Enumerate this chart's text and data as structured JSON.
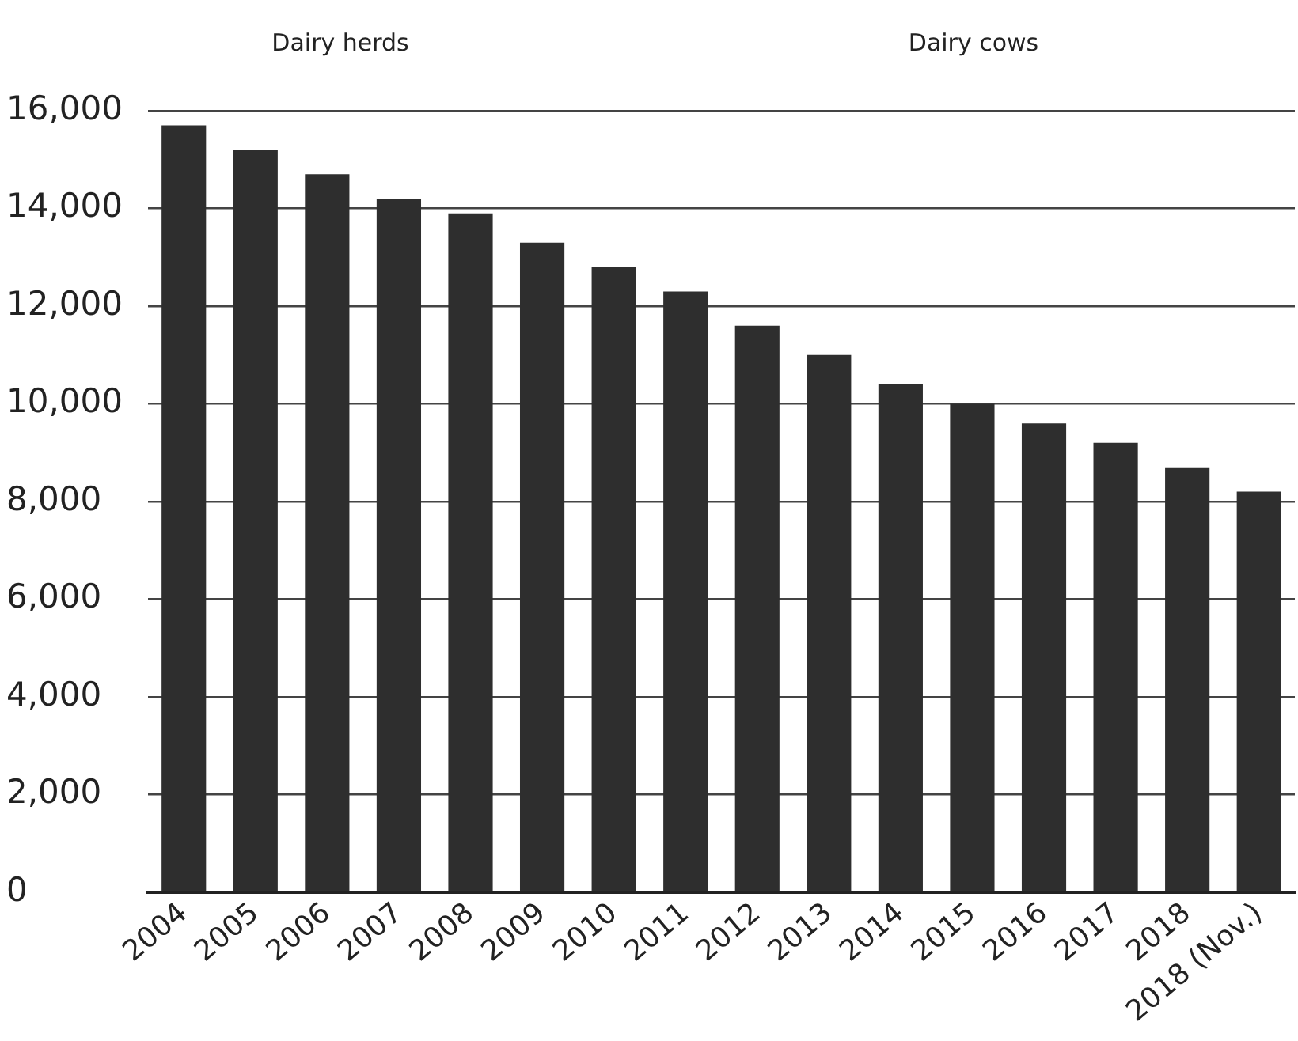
{
  "chart_data": {
    "type": "bar",
    "title": "Dairy herds",
    "annotations": [
      "Dairy cows"
    ],
    "categories": [
      "2004",
      "2005",
      "2006",
      "2007",
      "2008",
      "2009",
      "2010",
      "2011",
      "2012",
      "2013",
      "2014",
      "2015",
      "2016",
      "2017",
      "2018",
      "2018 (Nov.)"
    ],
    "values": [
      15700,
      15200,
      14700,
      14200,
      13900,
      13300,
      12800,
      12300,
      11600,
      11000,
      10400,
      10000,
      9600,
      9200,
      8700,
      8200
    ],
    "color": "#2e2e2e",
    "ylim": [
      0,
      16000
    ],
    "yticks": [
      0,
      {
        "value": 2000,
        "label": "2,000"
      },
      {
        "value": 4000,
        "label": "4,000"
      },
      {
        "value": 6000,
        "label": "6,000"
      },
      {
        "value": 8000,
        "label": "8,000"
      },
      {
        "value": 10000,
        "label": "10,000"
      },
      {
        "value": 12000,
        "label": "12,000"
      },
      {
        "value": 14000,
        "label": "14,000"
      },
      {
        "value": 16000,
        "label": "16,000"
      }
    ],
    "grid": "y"
  }
}
